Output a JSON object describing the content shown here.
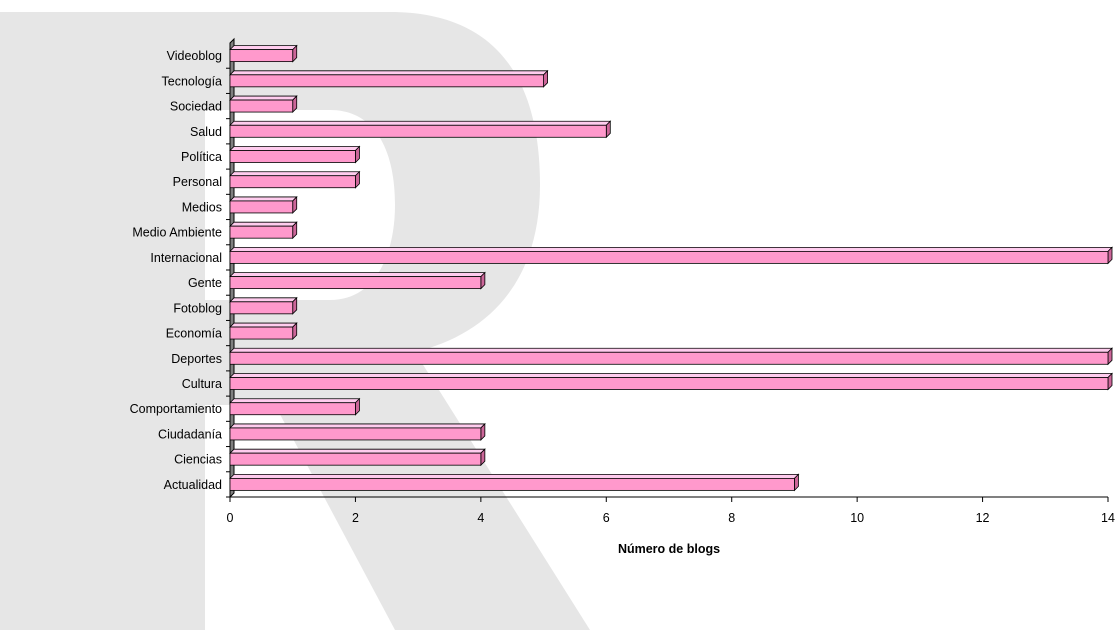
{
  "chart_data": {
    "type": "bar",
    "orientation": "horizontal",
    "title": "",
    "xlabel": "Número de blogs",
    "ylabel": "",
    "xlim": [
      0,
      14
    ],
    "x_ticks": [
      0,
      2,
      4,
      6,
      8,
      10,
      12,
      14
    ],
    "grid": false,
    "legend": "none",
    "style": "3d",
    "categories": [
      "Videoblog",
      "Tecnología",
      "Sociedad",
      "Salud",
      "Política",
      "Personal",
      "Medios",
      "Medio Ambiente",
      "Internacional",
      "Gente",
      "Fotoblog",
      "Economía",
      "Deportes",
      "Cultura",
      "Comportamiento",
      "Ciudadanía",
      "Ciencias",
      "Actualidad"
    ],
    "values": [
      1,
      5,
      1,
      6,
      2,
      2,
      1,
      1,
      14,
      4,
      1,
      1,
      14,
      14,
      2,
      4,
      4,
      9
    ]
  },
  "colors": {
    "bar_front": "#ff99cc",
    "bar_top": "#ffccee",
    "bar_side": "#cc6699",
    "bar_outline": "#000000",
    "wall": "#808080",
    "watermark": "#e6e6e6"
  },
  "watermark_icon": "letter-r-watermark-logo"
}
